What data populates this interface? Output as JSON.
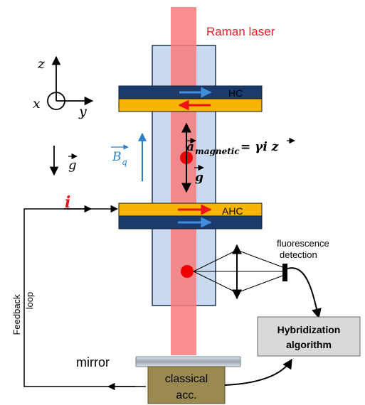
{
  "labels": {
    "raman_laser": "Raman laser",
    "axis_z": "z",
    "axis_x": "x",
    "axis_y": "y",
    "gravity": "g",
    "b_field_main": "B",
    "b_field_sub": "q",
    "coil_hc": "HC",
    "coil_ahc": "AHC",
    "accel_a": "a",
    "accel_sub": "magnetic",
    "accel_eq": "= γi z",
    "accel_g": "g",
    "current": "i",
    "feedback_loop_line1": "Feedback",
    "feedback_loop_line2": "loop",
    "fluorescence_line1": "fluorescence",
    "fluorescence_line2": "detection",
    "hybridization_line1": "Hybridization",
    "hybridization_line2": "algorithm",
    "mirror": "mirror",
    "classical_line1": "classical",
    "classical_line2": "acc."
  },
  "colors": {
    "laser": "#f97a7a",
    "laser_text": "#e8202a",
    "tube_fill": "#c9d9ef",
    "tube_stroke": "#1f3553",
    "coil_dark": "#1c3b6d",
    "coil_gold": "#f7b400",
    "arrow_blue": "#3f8fde",
    "arrow_red": "#ee1111",
    "b_field": "#2a7fc4",
    "atom": "#ee0000",
    "hybrid_box": "#d9d9d9",
    "classical_box": "#9a8a50",
    "mirror": "#a8b3be"
  }
}
